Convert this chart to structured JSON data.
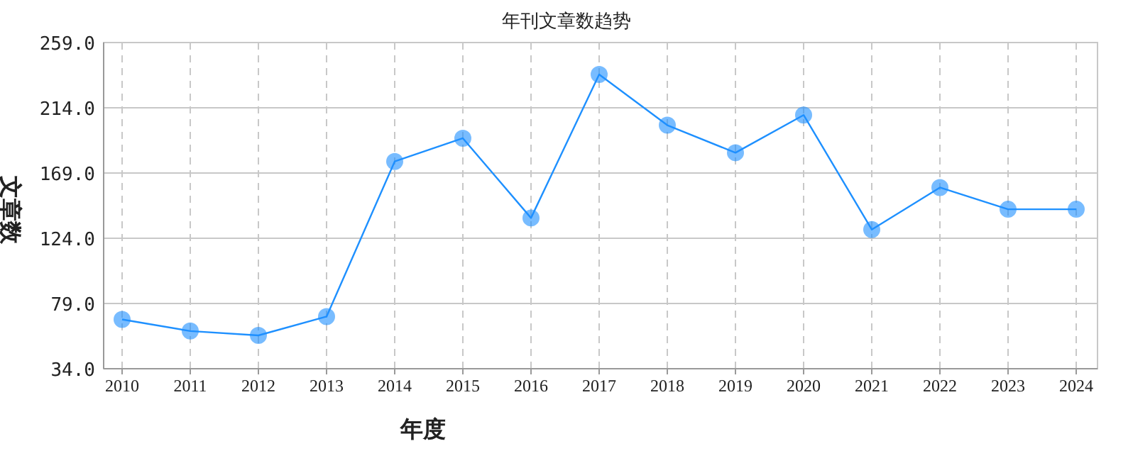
{
  "chart_data": {
    "type": "line",
    "title": "年刊文章数趋势",
    "xlabel": "年度",
    "ylabel": "文章数",
    "categories": [
      "2010",
      "2011",
      "2012",
      "2013",
      "2014",
      "2015",
      "2016",
      "2017",
      "2018",
      "2019",
      "2020",
      "2021",
      "2022",
      "2023",
      "2024"
    ],
    "series": [
      {
        "color": "#1e90ff",
        "values": [
          68,
          60,
          57,
          70,
          177,
          193,
          138,
          237,
          202,
          183,
          209,
          130,
          159,
          144,
          144
        ]
      }
    ],
    "ylim": [
      34,
      259
    ],
    "yticks": [
      {
        "value": 34,
        "label": "34.0"
      },
      {
        "value": 79,
        "label": "79.0"
      },
      {
        "value": 124,
        "label": "124.0"
      },
      {
        "value": 169,
        "label": "169.0"
      },
      {
        "value": 214,
        "label": "214.0"
      },
      {
        "value": 259,
        "label": "259.0"
      }
    ],
    "grid": true,
    "marker": "circle"
  }
}
